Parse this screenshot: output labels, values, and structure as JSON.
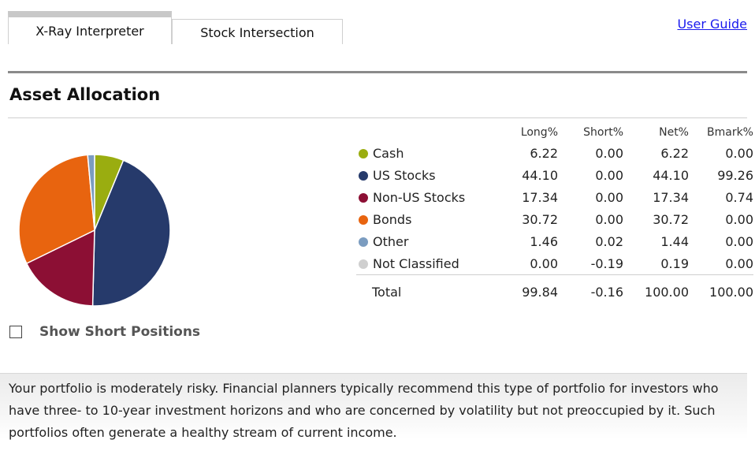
{
  "tabs": [
    {
      "label": "X-Ray Interpreter",
      "active": true
    },
    {
      "label": "Stock Intersection",
      "active": false
    }
  ],
  "user_guide_label": "User Guide",
  "section_title": "Asset Allocation",
  "table": {
    "headers": [
      "Long%",
      "Short%",
      "Net%",
      "Bmark%"
    ],
    "rows": [
      {
        "label": "Cash",
        "color": "#9aad10",
        "long": "6.22",
        "short": "0.00",
        "net": "6.22",
        "bmark": "0.00"
      },
      {
        "label": "US Stocks",
        "color": "#263a6b",
        "long": "44.10",
        "short": "0.00",
        "net": "44.10",
        "bmark": "99.26"
      },
      {
        "label": "Non-US Stocks",
        "color": "#8c0f34",
        "long": "17.34",
        "short": "0.00",
        "net": "17.34",
        "bmark": "0.74"
      },
      {
        "label": "Bonds",
        "color": "#e8640f",
        "long": "30.72",
        "short": "0.00",
        "net": "30.72",
        "bmark": "0.00"
      },
      {
        "label": "Other",
        "color": "#7b9cc0",
        "long": "1.46",
        "short": "0.02",
        "net": "1.44",
        "bmark": "0.00"
      },
      {
        "label": "Not Classified",
        "color": "#cfcfcf",
        "long": "0.00",
        "short": "-0.19",
        "net": "0.19",
        "bmark": "0.00"
      }
    ],
    "total": {
      "label": "Total",
      "long": "99.84",
      "short": "-0.16",
      "net": "100.00",
      "bmark": "100.00"
    }
  },
  "show_short_positions": {
    "label": "Show Short Positions",
    "checked": false
  },
  "summary_text": "Your portfolio is moderately risky. Financial planners typically recommend this type of portfolio for investors who have three- to 10-year investment horizons and who are concerned by volatility but not preoccupied by it. Such portfolios often generate a healthy stream of current income.",
  "chart_data": {
    "type": "pie",
    "categories": [
      "Cash",
      "US Stocks",
      "Non-US Stocks",
      "Bonds",
      "Other"
    ],
    "values": [
      6.22,
      44.1,
      17.34,
      30.72,
      1.46
    ],
    "colors": [
      "#9aad10",
      "#263a6b",
      "#8c0f34",
      "#e8640f",
      "#7b9cc0"
    ]
  }
}
